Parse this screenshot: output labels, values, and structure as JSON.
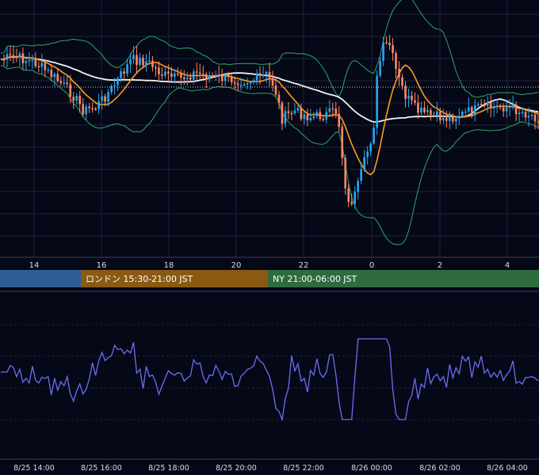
{
  "colors": {
    "background": "#050817",
    "grid": "#1e2438",
    "divider": "#3a3f55",
    "candle_up": "#29a7f0",
    "candle_down": "#ff8a65",
    "sma_long": "#f2f2f2",
    "sma_short": "#ff9c1a",
    "bollinger": "#2fa56a",
    "oscillator": "#6f6cf5",
    "session_tokyo": "#2c5d93",
    "session_london": "#8a5a12",
    "session_ny": "#2e6b3f"
  },
  "main_chart": {
    "x_ticks": [
      "14",
      "16",
      "18",
      "20",
      "22",
      "0",
      "2",
      "4"
    ]
  },
  "sessions": [
    {
      "id": "tokyo",
      "label": ""
    },
    {
      "id": "london",
      "label": "ロンドン 15:30-21:00 JST"
    },
    {
      "id": "ny",
      "label": "NY 21:00-06:00 JST"
    }
  ],
  "oscillator": {
    "x_ticks": [
      "8/25 14:00",
      "8/25 16:00",
      "8/25 18:00",
      "8/25 20:00",
      "8/25 22:00",
      "8/26 00:00",
      "8/26 02:00",
      "8/26 04:00"
    ]
  },
  "chart_data": [
    {
      "type": "candlestick",
      "x_unit": "hour (JST)",
      "x_range": [
        13,
        18.9
      ],
      "x_ticks": [
        14,
        16,
        18,
        20,
        22,
        24,
        26,
        28
      ],
      "overlays": [
        "short moving average",
        "long moving average",
        "bollinger bands"
      ],
      "grid": true,
      "reference_line": "dotted horizontal"
    },
    {
      "type": "line",
      "x_ticks": [
        "8/25 14:00",
        "8/25 16:00",
        "8/25 18:00",
        "8/25 20:00",
        "8/25 22:00",
        "8/26 00:00",
        "8/26 02:00",
        "8/26 04:00"
      ],
      "grid": true
    }
  ]
}
